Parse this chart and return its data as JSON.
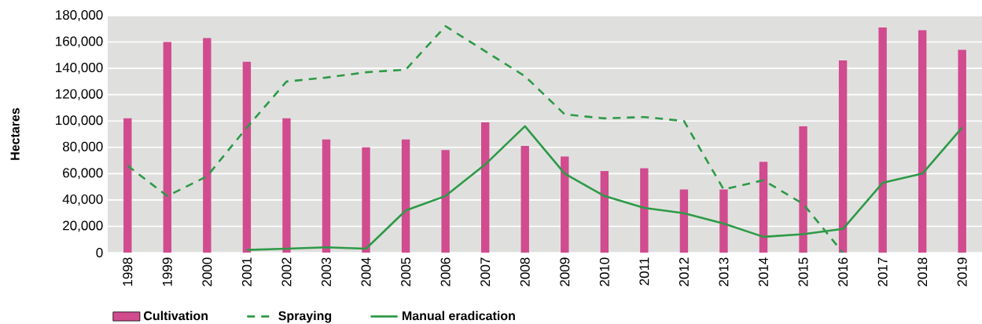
{
  "chart_data": {
    "type": "bar",
    "ylabel": "Hectares",
    "categories": [
      "1998",
      "1999",
      "2000",
      "2001",
      "2002",
      "2003",
      "2004",
      "2005",
      "2006",
      "2007",
      "2008",
      "2009",
      "2010",
      "2011",
      "2012",
      "2013",
      "2014",
      "2015",
      "2016",
      "2017",
      "2018",
      "2019"
    ],
    "series": [
      {
        "name": "Cultivation",
        "color": "#d14b8f",
        "values": [
          102000,
          160000,
          163000,
          145000,
          102000,
          86000,
          80000,
          86000,
          78000,
          99000,
          81000,
          73000,
          62000,
          64000,
          48000,
          48000,
          69000,
          96000,
          146000,
          171000,
          169000,
          154000
        ]
      },
      {
        "name": "Spraying",
        "type": "line",
        "line_style": "dashed",
        "color": "#2e9a47",
        "values": [
          66000,
          43000,
          58000,
          95000,
          130000,
          133000,
          137000,
          139000,
          172000,
          153000,
          134000,
          105000,
          102000,
          103000,
          100000,
          48000,
          55000,
          37000,
          0,
          null,
          null,
          null
        ]
      },
      {
        "name": "Manual eradication",
        "type": "line",
        "line_style": "solid",
        "color": "#2e9a47",
        "values": [
          null,
          null,
          null,
          2000,
          3000,
          4000,
          3000,
          32000,
          43000,
          67000,
          96000,
          60000,
          43000,
          34000,
          30000,
          22000,
          12000,
          14000,
          18000,
          53000,
          60000,
          95000
        ]
      }
    ],
    "ylim": [
      0,
      180000
    ],
    "yticks": [
      {
        "value": 0,
        "label": "0"
      },
      {
        "value": 20000,
        "label": "20,000"
      },
      {
        "value": 40000,
        "label": "40,000"
      },
      {
        "value": 60000,
        "label": "60,000"
      },
      {
        "value": 80000,
        "label": "80,000"
      },
      {
        "value": 100000,
        "label": "100,000"
      },
      {
        "value": 120000,
        "label": "120,000"
      },
      {
        "value": 140000,
        "label": "140,000"
      },
      {
        "value": 160000,
        "label": "160,000"
      },
      {
        "value": 180000,
        "label": "180,000"
      }
    ],
    "grid": "y",
    "legend": "bottom",
    "marker": "none"
  }
}
